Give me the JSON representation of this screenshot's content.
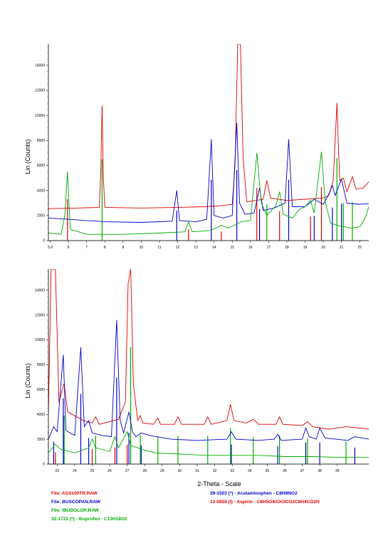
{
  "chart_data": [
    {
      "type": "line",
      "ylabel": "Lin (Counts)",
      "xlabel": "",
      "xlim": [
        4.9,
        22.5
      ],
      "ylim": [
        0,
        15700
      ],
      "x_ticks": [
        "5.0",
        "6",
        "7",
        "8",
        "9",
        "10",
        "11",
        "12",
        "13",
        "14",
        "15",
        "16",
        "17",
        "18",
        "19",
        "20",
        "21",
        "22"
      ],
      "y_ticks": [
        "0",
        "2000",
        "4000",
        "6000",
        "8000",
        "10000",
        "12000",
        "14000"
      ],
      "series": [
        {
          "color": "#dd0000",
          "points": [
            [
              4.9,
              2550
            ],
            [
              6.5,
              2600
            ],
            [
              7.7,
              2650
            ],
            [
              7.78,
              5500
            ],
            [
              7.85,
              10800
            ],
            [
              7.92,
              5000
            ],
            [
              8.0,
              2650
            ],
            [
              10,
              2600
            ],
            [
              12,
              2650
            ],
            [
              13.5,
              2700
            ],
            [
              14.5,
              2800
            ],
            [
              15.0,
              2900
            ],
            [
              15.15,
              6000
            ],
            [
              15.3,
              15700
            ],
            [
              15.45,
              15700
            ],
            [
              15.6,
              6500
            ],
            [
              15.8,
              3100
            ],
            [
              16.3,
              3200
            ],
            [
              16.7,
              3300
            ],
            [
              16.9,
              4800
            ],
            [
              17.1,
              3400
            ],
            [
              18.0,
              3200
            ],
            [
              19,
              3300
            ],
            [
              20,
              3400
            ],
            [
              20.3,
              3600
            ],
            [
              20.55,
              4800
            ],
            [
              20.75,
              11000
            ],
            [
              20.9,
              4800
            ],
            [
              21.1,
              5000
            ],
            [
              21.3,
              3900
            ],
            [
              21.6,
              5100
            ],
            [
              21.8,
              4100
            ],
            [
              22.2,
              4200
            ],
            [
              22.5,
              4700
            ]
          ]
        },
        {
          "color": "#0000cc",
          "points": [
            [
              4.9,
              1800
            ],
            [
              6,
              1700
            ],
            [
              8,
              1500
            ],
            [
              10,
              1450
            ],
            [
              11.7,
              1550
            ],
            [
              11.95,
              4000
            ],
            [
              12.1,
              1600
            ],
            [
              13,
              1500
            ],
            [
              13.6,
              1700
            ],
            [
              13.85,
              8100
            ],
            [
              14.0,
              2000
            ],
            [
              14.5,
              1800
            ],
            [
              15.0,
              2000
            ],
            [
              15.25,
              9400
            ],
            [
              15.4,
              3000
            ],
            [
              15.7,
              2100
            ],
            [
              16.2,
              2200
            ],
            [
              16.5,
              4200
            ],
            [
              16.7,
              2400
            ],
            [
              17.3,
              2600
            ],
            [
              17.9,
              3000
            ],
            [
              18.1,
              8100
            ],
            [
              18.3,
              2700
            ],
            [
              19,
              2700
            ],
            [
              19.5,
              3300
            ],
            [
              20.0,
              2900
            ],
            [
              20.3,
              3700
            ],
            [
              20.5,
              4400
            ],
            [
              20.65,
              3600
            ],
            [
              21.0,
              4900
            ],
            [
              21.3,
              3000
            ],
            [
              22,
              2900
            ],
            [
              22.5,
              2950
            ]
          ]
        },
        {
          "color": "#00aa00",
          "points": [
            [
              4.9,
              600
            ],
            [
              5.6,
              500
            ],
            [
              5.8,
              2000
            ],
            [
              5.95,
              5500
            ],
            [
              6.1,
              900
            ],
            [
              7,
              500
            ],
            [
              9,
              500
            ],
            [
              11,
              600
            ],
            [
              12.4,
              700
            ],
            [
              12.6,
              1500
            ],
            [
              12.8,
              700
            ],
            [
              13.8,
              800
            ],
            [
              14.4,
              1200
            ],
            [
              14.8,
              1000
            ],
            [
              15.5,
              1500
            ],
            [
              16.0,
              1600
            ],
            [
              16.35,
              7000
            ],
            [
              16.6,
              3000
            ],
            [
              16.9,
              2000
            ],
            [
              17.4,
              2800
            ],
            [
              17.6,
              3900
            ],
            [
              17.8,
              2100
            ],
            [
              18.3,
              1800
            ],
            [
              18.7,
              2500
            ],
            [
              19.0,
              2700
            ],
            [
              19.3,
              3200
            ],
            [
              19.5,
              2200
            ],
            [
              19.9,
              7100
            ],
            [
              20.1,
              3200
            ],
            [
              20.4,
              1400
            ],
            [
              20.8,
              1200
            ],
            [
              21.5,
              1000
            ],
            [
              22,
              1100
            ],
            [
              22.3,
              1800
            ],
            [
              22.5,
              2700
            ]
          ]
        }
      ]
    },
    {
      "type": "line",
      "ylabel": "Lin (Counts)",
      "xlabel": "2-Theta - Scale",
      "xlim": [
        22.5,
        40.8
      ],
      "ylim": [
        0,
        15700
      ],
      "x_ticks": [
        "23",
        "24",
        "25",
        "26",
        "27",
        "28",
        "29",
        "30",
        "31",
        "32",
        "33",
        "34",
        "35",
        "36",
        "37",
        "38",
        "39"
      ],
      "y_ticks": [
        "0",
        "2000",
        "4000",
        "6000",
        "8000",
        "10000",
        "12000",
        "14000"
      ],
      "series": [
        {
          "color": "#dd0000",
          "points": [
            [
              22.5,
              4000
            ],
            [
              22.65,
              15700
            ],
            [
              22.9,
              15700
            ],
            [
              23.1,
              5000
            ],
            [
              23.4,
              6500
            ],
            [
              23.6,
              4200
            ],
            [
              24.5,
              3500
            ],
            [
              25.0,
              3300
            ],
            [
              25.2,
              3800
            ],
            [
              25.4,
              3200
            ],
            [
              26.5,
              3600
            ],
            [
              26.9,
              5000
            ],
            [
              27.05,
              14500
            ],
            [
              27.2,
              15700
            ],
            [
              27.35,
              6500
            ],
            [
              27.6,
              3500
            ],
            [
              27.75,
              3900
            ],
            [
              27.9,
              3300
            ],
            [
              28.5,
              3200
            ],
            [
              28.75,
              3700
            ],
            [
              28.9,
              3200
            ],
            [
              29.7,
              3200
            ],
            [
              29.9,
              3800
            ],
            [
              30.1,
              3200
            ],
            [
              31.4,
              3200
            ],
            [
              31.6,
              3800
            ],
            [
              31.8,
              3200
            ],
            [
              32.7,
              3500
            ],
            [
              32.9,
              4800
            ],
            [
              33.1,
              3500
            ],
            [
              33.8,
              3300
            ],
            [
              34.2,
              3600
            ],
            [
              34.5,
              3200
            ],
            [
              35.5,
              3200
            ],
            [
              35.7,
              3800
            ],
            [
              35.9,
              3200
            ],
            [
              37.0,
              3100
            ],
            [
              37.3,
              3400
            ],
            [
              37.6,
              3000
            ],
            [
              38.5,
              2800
            ],
            [
              39.5,
              3000
            ],
            [
              40.3,
              2900
            ],
            [
              40.8,
              2800
            ]
          ]
        },
        {
          "color": "#0000cc",
          "points": [
            [
              22.5,
              2000
            ],
            [
              22.8,
              3000
            ],
            [
              23.0,
              2600
            ],
            [
              23.35,
              8800
            ],
            [
              23.5,
              2700
            ],
            [
              24.0,
              2300
            ],
            [
              24.35,
              9400
            ],
            [
              24.55,
              3000
            ],
            [
              24.8,
              3500
            ],
            [
              25.0,
              2500
            ],
            [
              25.6,
              2300
            ],
            [
              26.1,
              2200
            ],
            [
              26.4,
              11600
            ],
            [
              26.6,
              3500
            ],
            [
              26.8,
              2500
            ],
            [
              27.1,
              4200
            ],
            [
              27.3,
              2600
            ],
            [
              27.5,
              2200
            ],
            [
              27.8,
              2500
            ],
            [
              28.3,
              2300
            ],
            [
              29.5,
              2000
            ],
            [
              31.0,
              1900
            ],
            [
              32.7,
              2000
            ],
            [
              32.95,
              2600
            ],
            [
              33.2,
              2000
            ],
            [
              34.5,
              1900
            ],
            [
              35.4,
              2000
            ],
            [
              35.6,
              2400
            ],
            [
              35.8,
              1900
            ],
            [
              37.0,
              2000
            ],
            [
              37.2,
              2900
            ],
            [
              37.4,
              2200
            ],
            [
              37.8,
              2000
            ],
            [
              38.0,
              2900
            ],
            [
              38.3,
              2100
            ],
            [
              39.6,
              1900
            ],
            [
              40.0,
              2200
            ],
            [
              40.8,
              2000
            ]
          ]
        },
        {
          "color": "#00aa00",
          "points": [
            [
              22.5,
              900
            ],
            [
              22.9,
              1600
            ],
            [
              23.2,
              1200
            ],
            [
              24,
              900
            ],
            [
              24.8,
              1300
            ],
            [
              25.0,
              2000
            ],
            [
              25.2,
              1300
            ],
            [
              26.0,
              1000
            ],
            [
              26.3,
              2200
            ],
            [
              26.5,
              1300
            ],
            [
              27.0,
              2600
            ],
            [
              27.2,
              1500
            ],
            [
              27.8,
              1200
            ],
            [
              28.6,
              900
            ],
            [
              30,
              800
            ],
            [
              31.5,
              700
            ],
            [
              33,
              700
            ],
            [
              34.5,
              700
            ],
            [
              36,
              600
            ],
            [
              37.5,
              600
            ],
            [
              39,
              550
            ],
            [
              40.8,
              550
            ]
          ]
        }
      ]
    }
  ],
  "legend": {
    "file_ass": "File: ASS100TR.RAW",
    "file_buscopan": "File: BUSCOPAN.RAW",
    "file_ibudolor": "File: IBUDOLOR.RAW",
    "ref_ibuprofen": "32-1723 (*) - Ibuprofen - C13H18O2",
    "ref_acetaminophen": "39-1503 (*) - Acetaminophen - C8H9NO2",
    "ref_aspirin": "12-0850 (I) - Aspirin - C6H5O4/CH3CO2C6H4CO2H"
  },
  "colors": {
    "red": "#dd0000",
    "blue": "#0000cc",
    "green": "#00aa00"
  }
}
